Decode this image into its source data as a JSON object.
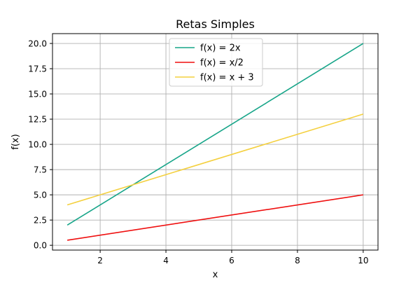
{
  "chart_data": {
    "type": "line",
    "title": "Retas Simples",
    "xlabel": "x",
    "ylabel": "f(x)",
    "xlim": [
      0.55,
      10.45
    ],
    "ylim": [
      -0.475,
      20.975
    ],
    "xticks": [
      2,
      4,
      6,
      8,
      10
    ],
    "xtick_labels": [
      "2",
      "4",
      "6",
      "8",
      "10"
    ],
    "yticks": [
      0,
      2.5,
      5,
      7.5,
      10,
      12.5,
      15,
      17.5,
      20
    ],
    "ytick_labels": [
      "0.0",
      "2.5",
      "5.0",
      "7.5",
      "10.0",
      "12.5",
      "15.0",
      "17.5",
      "20.0"
    ],
    "grid": true,
    "legend_position": "top-center",
    "x": [
      1,
      10
    ],
    "series": [
      {
        "name": "f(x) = 2x",
        "color": "#17a589",
        "values": [
          2,
          20
        ]
      },
      {
        "name": "f(x) = x/2",
        "color": "#ef0f0f",
        "values": [
          0.5,
          5
        ]
      },
      {
        "name": "f(x) = x + 3",
        "color": "#f4d03f",
        "values": [
          4,
          13
        ]
      }
    ]
  }
}
